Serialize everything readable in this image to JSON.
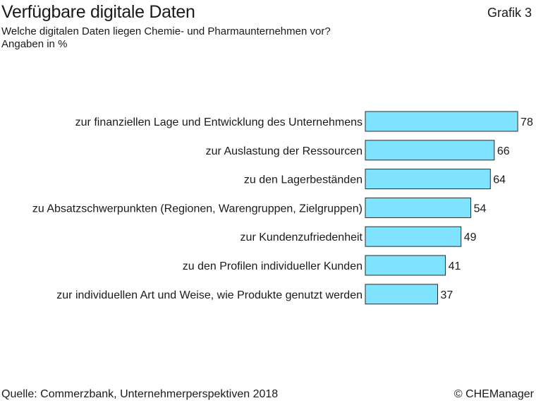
{
  "header": {
    "title": "Verfügbare digitale Daten",
    "grafik": "Grafik 3",
    "subtitle": "Welche digitalen Daten liegen Chemie- und Pharmaunternehmen vor?",
    "unit": "Angaben in %"
  },
  "footer": {
    "source": "Quelle: Commerzbank, Unternehmerperspektiven 2018",
    "copyright": "© CHEManager"
  },
  "colors": {
    "bar_fill": "#7fe3ff",
    "bar_stroke": "#2a2a2a"
  },
  "chart_data": {
    "type": "bar",
    "orientation": "horizontal",
    "categories": [
      "zur finanziellen Lage und Entwicklung des Unternehmens",
      "zur Auslastung der Ressourcen",
      "zu den Lagerbeständen",
      "zu Absatzschwerpunkten (Regionen, Warengruppen, Zielgruppen)",
      "zur Kundenzufriedenheit",
      "zu den Profilen individueller Kunden",
      "zur individuellen Art und Weise, wie Produkte genutzt werden"
    ],
    "values": [
      78,
      66,
      64,
      54,
      49,
      41,
      37
    ],
    "value_labels": [
      "78",
      "66",
      "64",
      "54",
      "49",
      "41",
      "37"
    ],
    "grid": false
  }
}
